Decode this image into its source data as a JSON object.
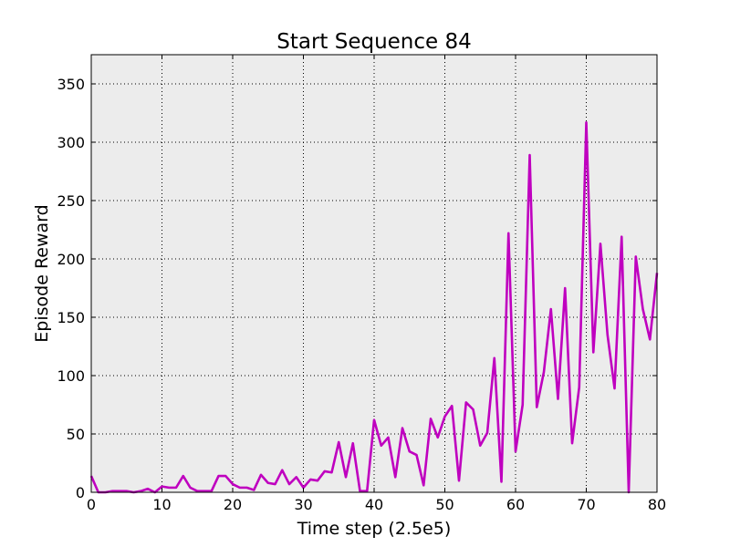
{
  "chart_data": {
    "type": "line",
    "title": "Start Sequence 84",
    "xlabel": "Time step (2.5e5)",
    "ylabel": "Episode Reward",
    "xlim": [
      0,
      80
    ],
    "ylim": [
      0,
      375
    ],
    "xticks": [
      0,
      10,
      20,
      30,
      40,
      50,
      60,
      70,
      80
    ],
    "yticks": [
      0,
      50,
      100,
      150,
      200,
      250,
      300,
      350
    ],
    "grid": true,
    "background": "#ececec",
    "line_color": "#bf00bf",
    "series": [
      {
        "x": [
          0,
          1,
          2,
          3,
          4,
          5,
          6,
          7,
          8,
          9,
          10,
          11,
          12,
          13,
          14,
          15,
          16,
          17,
          18,
          19,
          20,
          21,
          22,
          23,
          24,
          25,
          26,
          27,
          28,
          29,
          30,
          31,
          32,
          33,
          34,
          35,
          36,
          37,
          38,
          39,
          40,
          41,
          42,
          43,
          44,
          45,
          46,
          47,
          48,
          49,
          50,
          51,
          52,
          53,
          54,
          55,
          56,
          57,
          58,
          59,
          60,
          61,
          62,
          63,
          64,
          65,
          66,
          67,
          68,
          69,
          70,
          71,
          72,
          73,
          74,
          75,
          76,
          77,
          78,
          79,
          80
        ],
        "values": [
          14,
          0,
          0,
          1,
          1,
          1,
          0,
          1,
          3,
          0,
          5,
          4,
          4,
          14,
          4,
          1,
          1,
          1,
          14,
          14,
          7,
          4,
          4,
          2,
          15,
          8,
          7,
          19,
          7,
          13,
          4,
          11,
          10,
          18,
          17,
          43,
          13,
          42,
          1,
          1,
          62,
          40,
          47,
          13,
          55,
          35,
          32,
          6,
          63,
          47,
          65,
          74,
          10,
          77,
          71,
          40,
          51,
          115,
          9,
          222,
          35,
          75,
          289,
          73,
          103,
          157,
          80,
          175,
          42,
          90,
          317,
          120,
          213,
          135,
          89,
          219,
          0,
          202,
          157,
          131,
          188
        ]
      }
    ]
  }
}
